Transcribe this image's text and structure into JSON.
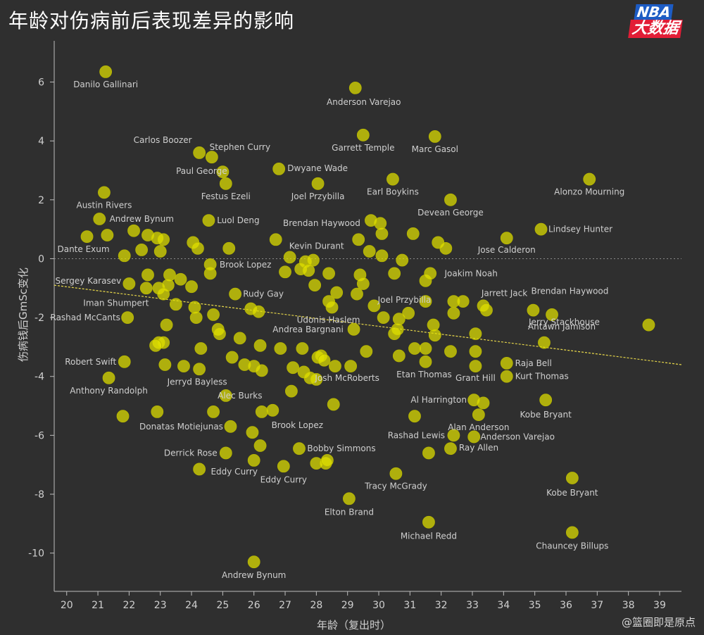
{
  "chart_data": {
    "type": "scatter",
    "title": "年龄对伤病前后表现差异的影响",
    "xlabel": "年龄（复出时）",
    "ylabel": "伤病钱后GmSc变化",
    "xlim": [
      19.6,
      39.7
    ],
    "ylim": [
      -11.3,
      7.4
    ],
    "xticks": [
      20,
      21,
      22,
      23,
      24,
      25,
      26,
      27,
      28,
      29,
      30,
      31,
      32,
      33,
      34,
      35,
      36,
      37,
      38,
      39
    ],
    "yticks": [
      6,
      4,
      2,
      0,
      -2,
      -4,
      -6,
      -8,
      -10
    ],
    "grid": false,
    "zero_line": true,
    "trendline": {
      "x": [
        19.6,
        39.7
      ],
      "y": [
        -0.9,
        -3.6
      ]
    },
    "colors": {
      "point": "#e0e000",
      "trend": "#e8d84a",
      "background": "#2f2f2f"
    },
    "labeled_points": [
      {
        "x": 21.25,
        "y": 6.35,
        "label": "Danilo Gallinari"
      },
      {
        "x": 29.25,
        "y": 5.8,
        "label": "Anderson Varejao"
      },
      {
        "x": 29.5,
        "y": 4.2,
        "label": "Garrett Temple"
      },
      {
        "x": 31.8,
        "y": 4.15,
        "label": "Marc Gasol"
      },
      {
        "x": 24.25,
        "y": 3.6,
        "label": "Carlos Boozer"
      },
      {
        "x": 24.65,
        "y": 3.45,
        "label": "Stephen Curry"
      },
      {
        "x": 25.0,
        "y": 2.95,
        "label": "Paul George"
      },
      {
        "x": 26.8,
        "y": 3.05,
        "label": "Dwyane Wade"
      },
      {
        "x": 25.1,
        "y": 2.55,
        "label": "Festus Ezeli"
      },
      {
        "x": 28.05,
        "y": 2.55,
        "label": "Joel Przybilla"
      },
      {
        "x": 30.45,
        "y": 2.7,
        "label": "Earl Boykins"
      },
      {
        "x": 36.75,
        "y": 2.7,
        "label": "Alonzo Mourning"
      },
      {
        "x": 21.2,
        "y": 2.25,
        "label": "Austin Rivers"
      },
      {
        "x": 32.3,
        "y": 2.0,
        "label": "Devean George"
      },
      {
        "x": 21.05,
        "y": 1.35,
        "label": "Andrew Bynum"
      },
      {
        "x": 24.55,
        "y": 1.3,
        "label": "Luol Deng"
      },
      {
        "x": 29.75,
        "y": 1.3,
        "label": "Brendan Haywood"
      },
      {
        "x": 35.2,
        "y": 1.0,
        "label": "Lindsey Hunter"
      },
      {
        "x": 20.65,
        "y": 0.75,
        "label": "Dante Exum"
      },
      {
        "x": 27.15,
        "y": 0.05,
        "label": "Kevin Durant"
      },
      {
        "x": 34.1,
        "y": 0.7,
        "label": "Jose Calderon"
      },
      {
        "x": 24.6,
        "y": -0.2,
        "label": "Brook Lopez"
      },
      {
        "x": 31.65,
        "y": -0.5,
        "label": "Joakim Noah"
      },
      {
        "x": 22.0,
        "y": -0.85,
        "label": "Sergey Karasev"
      },
      {
        "x": 25.4,
        "y": -1.2,
        "label": "Rudy Gay"
      },
      {
        "x": 33.35,
        "y": -1.6,
        "label": "Jarrett Jack"
      },
      {
        "x": 31.5,
        "y": -1.45,
        "label": "Joel Przybilla"
      },
      {
        "x": 34.95,
        "y": -1.75,
        "label": "Brendan Haywood"
      },
      {
        "x": 23.5,
        "y": -1.55,
        "label": "Iman Shumpert"
      },
      {
        "x": 28.5,
        "y": -1.65,
        "label": "Udonis Haslem"
      },
      {
        "x": 21.95,
        "y": -2.0,
        "label": "Rashad McCants"
      },
      {
        "x": 35.55,
        "y": -1.9,
        "label": "Antawn Jamison"
      },
      {
        "x": 38.65,
        "y": -2.25,
        "label": "Jerry Stackhouse"
      },
      {
        "x": 29.2,
        "y": -2.4,
        "label": "Andrea Bargnani"
      },
      {
        "x": 35.3,
        "y": -2.85,
        "label": ""
      },
      {
        "x": 21.85,
        "y": -3.5,
        "label": "Robert Swift"
      },
      {
        "x": 34.1,
        "y": -3.55,
        "label": "Raja Bell"
      },
      {
        "x": 31.5,
        "y": -3.5,
        "label": "Etan Thomas"
      },
      {
        "x": 33.1,
        "y": -3.65,
        "label": "Grant Hill"
      },
      {
        "x": 34.1,
        "y": -4.0,
        "label": "Kurt Thomas"
      },
      {
        "x": 29.1,
        "y": -3.65,
        "label": "Josh McRoberts"
      },
      {
        "x": 24.25,
        "y": -3.75,
        "label": "Jerryd Bayless"
      },
      {
        "x": 21.35,
        "y": -4.05,
        "label": "Anthony Randolph"
      },
      {
        "x": 25.1,
        "y": -4.65,
        "label": "Alec Burks"
      },
      {
        "x": 33.05,
        "y": -4.8,
        "label": "Al Harrington"
      },
      {
        "x": 35.35,
        "y": -4.8,
        "label": "Kobe Bryant"
      },
      {
        "x": 33.2,
        "y": -5.3,
        "label": "Alan Anderson"
      },
      {
        "x": 26.6,
        "y": -5.15,
        "label": "Brook Lopez"
      },
      {
        "x": 25.25,
        "y": -5.7,
        "label": "Donatas Motiejunas"
      },
      {
        "x": 32.4,
        "y": -6.0,
        "label": "Rashad Lewis"
      },
      {
        "x": 33.05,
        "y": -6.05,
        "label": "Anderson Varejao"
      },
      {
        "x": 32.3,
        "y": -6.45,
        "label": "Ray Allen"
      },
      {
        "x": 27.45,
        "y": -6.45,
        "label": "Bobby Simmons"
      },
      {
        "x": 25.1,
        "y": -6.6,
        "label": "Derrick Rose"
      },
      {
        "x": 26.0,
        "y": -6.85,
        "label": "Eddy Curry"
      },
      {
        "x": 26.95,
        "y": -7.05,
        "label": "Eddy Curry"
      },
      {
        "x": 30.55,
        "y": -7.3,
        "label": "Tracy McGrady"
      },
      {
        "x": 36.2,
        "y": -7.45,
        "label": "Kobe Bryant"
      },
      {
        "x": 29.05,
        "y": -8.15,
        "label": "Elton Brand"
      },
      {
        "x": 31.6,
        "y": -8.95,
        "label": "Michael Redd"
      },
      {
        "x": 36.2,
        "y": -9.3,
        "label": "Chauncey Billups"
      },
      {
        "x": 26.0,
        "y": -10.3,
        "label": "Andrew Bynum"
      }
    ],
    "other_points": [
      {
        "x": 21.3,
        "y": 0.8
      },
      {
        "x": 22.15,
        "y": 0.95
      },
      {
        "x": 22.6,
        "y": 0.8
      },
      {
        "x": 22.9,
        "y": 0.7
      },
      {
        "x": 23.1,
        "y": 0.65
      },
      {
        "x": 21.85,
        "y": 0.1
      },
      {
        "x": 22.4,
        "y": 0.3
      },
      {
        "x": 23.0,
        "y": 0.25
      },
      {
        "x": 24.05,
        "y": 0.55
      },
      {
        "x": 24.2,
        "y": 0.35
      },
      {
        "x": 25.2,
        "y": 0.35
      },
      {
        "x": 26.7,
        "y": 0.65
      },
      {
        "x": 24.6,
        "y": -0.5
      },
      {
        "x": 22.6,
        "y": -0.55
      },
      {
        "x": 23.3,
        "y": -0.55
      },
      {
        "x": 23.65,
        "y": -0.7
      },
      {
        "x": 22.55,
        "y": -1.0
      },
      {
        "x": 22.95,
        "y": -1.0
      },
      {
        "x": 23.25,
        "y": -0.9
      },
      {
        "x": 24.0,
        "y": -0.95
      },
      {
        "x": 23.1,
        "y": -1.2
      },
      {
        "x": 24.1,
        "y": -1.65
      },
      {
        "x": 24.15,
        "y": -2.0
      },
      {
        "x": 24.7,
        "y": -1.9
      },
      {
        "x": 25.9,
        "y": -1.7
      },
      {
        "x": 26.15,
        "y": -1.8
      },
      {
        "x": 23.2,
        "y": -2.25
      },
      {
        "x": 24.85,
        "y": -2.4
      },
      {
        "x": 24.9,
        "y": -2.55
      },
      {
        "x": 25.55,
        "y": -2.7
      },
      {
        "x": 22.95,
        "y": -2.85
      },
      {
        "x": 23.1,
        "y": -2.85
      },
      {
        "x": 22.85,
        "y": -2.95
      },
      {
        "x": 24.3,
        "y": -3.05
      },
      {
        "x": 26.2,
        "y": -2.95
      },
      {
        "x": 26.85,
        "y": -3.05
      },
      {
        "x": 27.55,
        "y": -3.05
      },
      {
        "x": 25.3,
        "y": -3.35
      },
      {
        "x": 23.15,
        "y": -3.6
      },
      {
        "x": 23.75,
        "y": -3.65
      },
      {
        "x": 25.7,
        "y": -3.6
      },
      {
        "x": 26.0,
        "y": -3.65
      },
      {
        "x": 26.25,
        "y": -3.8
      },
      {
        "x": 27.25,
        "y": -3.7
      },
      {
        "x": 27.6,
        "y": -3.85
      },
      {
        "x": 27.8,
        "y": -4.05
      },
      {
        "x": 28.0,
        "y": -4.1
      },
      {
        "x": 27.2,
        "y": -4.5
      },
      {
        "x": 28.05,
        "y": -3.35
      },
      {
        "x": 28.15,
        "y": -3.3
      },
      {
        "x": 28.25,
        "y": -3.45
      },
      {
        "x": 28.6,
        "y": -3.65
      },
      {
        "x": 24.7,
        "y": -5.2
      },
      {
        "x": 22.9,
        "y": -5.2
      },
      {
        "x": 21.8,
        "y": -5.35
      },
      {
        "x": 26.25,
        "y": -5.2
      },
      {
        "x": 28.55,
        "y": -4.95
      },
      {
        "x": 25.95,
        "y": -5.9
      },
      {
        "x": 26.2,
        "y": -6.35
      },
      {
        "x": 24.25,
        "y": -7.15
      },
      {
        "x": 28.0,
        "y": -6.95
      },
      {
        "x": 28.3,
        "y": -6.95
      },
      {
        "x": 28.35,
        "y": -6.85
      },
      {
        "x": 27.65,
        "y": -0.1
      },
      {
        "x": 27.9,
        "y": -0.05
      },
      {
        "x": 27.5,
        "y": -0.35
      },
      {
        "x": 27.75,
        "y": -0.4
      },
      {
        "x": 27.0,
        "y": -0.45
      },
      {
        "x": 28.4,
        "y": -0.5
      },
      {
        "x": 29.4,
        "y": -0.55
      },
      {
        "x": 29.5,
        "y": -0.85
      },
      {
        "x": 27.95,
        "y": -0.9
      },
      {
        "x": 28.65,
        "y": -1.15
      },
      {
        "x": 29.3,
        "y": -1.2
      },
      {
        "x": 28.4,
        "y": -1.45
      },
      {
        "x": 29.35,
        "y": 0.65
      },
      {
        "x": 29.7,
        "y": 0.25
      },
      {
        "x": 30.05,
        "y": 1.2
      },
      {
        "x": 30.1,
        "y": 0.85
      },
      {
        "x": 30.1,
        "y": 0.1
      },
      {
        "x": 30.75,
        "y": -0.05
      },
      {
        "x": 31.1,
        "y": 0.85
      },
      {
        "x": 31.9,
        "y": 0.55
      },
      {
        "x": 32.15,
        "y": 0.35
      },
      {
        "x": 30.5,
        "y": -0.5
      },
      {
        "x": 31.5,
        "y": -0.75
      },
      {
        "x": 29.85,
        "y": -1.6
      },
      {
        "x": 30.15,
        "y": -2.0
      },
      {
        "x": 30.5,
        "y": -2.55
      },
      {
        "x": 30.65,
        "y": -2.05
      },
      {
        "x": 30.6,
        "y": -2.4
      },
      {
        "x": 30.95,
        "y": -1.85
      },
      {
        "x": 31.75,
        "y": -2.25
      },
      {
        "x": 31.8,
        "y": -2.6
      },
      {
        "x": 32.4,
        "y": -1.45
      },
      {
        "x": 32.7,
        "y": -1.45
      },
      {
        "x": 32.4,
        "y": -1.85
      },
      {
        "x": 33.1,
        "y": -2.55
      },
      {
        "x": 33.45,
        "y": -1.75
      },
      {
        "x": 29.6,
        "y": -3.15
      },
      {
        "x": 30.65,
        "y": -3.3
      },
      {
        "x": 31.15,
        "y": -3.05
      },
      {
        "x": 31.5,
        "y": -3.05
      },
      {
        "x": 32.3,
        "y": -3.15
      },
      {
        "x": 33.1,
        "y": -3.15
      },
      {
        "x": 33.35,
        "y": -4.9
      },
      {
        "x": 31.15,
        "y": -5.35
      },
      {
        "x": 31.6,
        "y": -6.6
      }
    ]
  }
}
